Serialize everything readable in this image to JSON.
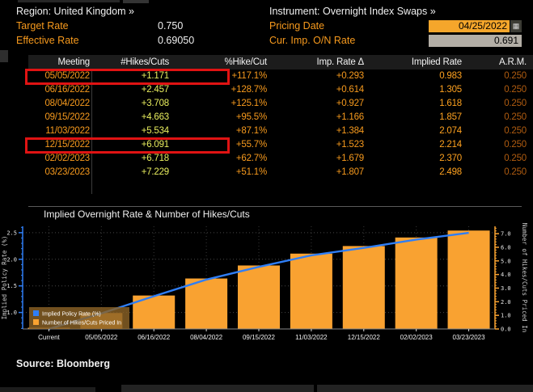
{
  "header": {
    "region": "Region: United Kingdom »",
    "instrument": "Instrument: Overnight Index Swaps »",
    "target_rate_label": "Target Rate",
    "target_rate_value": "0.750",
    "effective_rate_label": "Effective Rate",
    "effective_rate_value": "0.69050",
    "pricing_date_label": "Pricing Date",
    "pricing_date_value": "04/25/2022",
    "cur_imp_label": "Cur. Imp. O/N Rate",
    "cur_imp_value": "0.691"
  },
  "table": {
    "columns": [
      "Meeting",
      "#Hikes/Cuts",
      "%Hike/Cut",
      "Imp. Rate Δ",
      "Implied Rate",
      "A.R.M."
    ],
    "rows": [
      [
        "05/05/2022",
        "+1.171",
        "+117.1%",
        "+0.293",
        "0.983",
        "0.250"
      ],
      [
        "06/16/2022",
        "+2.457",
        "+128.7%",
        "+0.614",
        "1.305",
        "0.250"
      ],
      [
        "08/04/2022",
        "+3.708",
        "+125.1%",
        "+0.927",
        "1.618",
        "0.250"
      ],
      [
        "09/15/2022",
        "+4.663",
        "+95.5%",
        "+1.166",
        "1.857",
        "0.250"
      ],
      [
        "11/03/2022",
        "+5.534",
        "+87.1%",
        "+1.384",
        "2.074",
        "0.250"
      ],
      [
        "12/15/2022",
        "+6.091",
        "+55.7%",
        "+1.523",
        "2.214",
        "0.250"
      ],
      [
        "02/02/2023",
        "+6.718",
        "+62.7%",
        "+1.679",
        "2.370",
        "0.250"
      ],
      [
        "03/23/2023",
        "+7.229",
        "+51.1%",
        "+1.807",
        "2.498",
        "0.250"
      ]
    ],
    "highlighted_rows": [
      0,
      5
    ]
  },
  "chart_data": {
    "type": "bar",
    "title": "Implied Overnight Rate & Number of Hikes/Cuts",
    "categories": [
      "Current",
      "05/05/2022",
      "06/16/2022",
      "08/04/2022",
      "09/15/2022",
      "11/03/2022",
      "12/15/2022",
      "02/02/2023",
      "03/23/2023"
    ],
    "series": [
      {
        "name": "Implied Policy Rate (%)",
        "type": "line",
        "axis": "left",
        "values": [
          0.691,
          0.983,
          1.305,
          1.618,
          1.857,
          2.074,
          2.214,
          2.37,
          2.498
        ],
        "color": "#2f7ef6"
      },
      {
        "name": "Number of Hikes/Cuts Priced In",
        "type": "bar",
        "axis": "right",
        "values": [
          0,
          1.171,
          2.457,
          3.708,
          4.663,
          5.534,
          6.091,
          6.718,
          7.229
        ],
        "color": "#f9a231"
      }
    ],
    "left_axis": {
      "label": "Implied Policy Rate (%)",
      "ticks": [
        1.0,
        1.5,
        2.0,
        2.5
      ],
      "range": [
        0.69,
        2.62
      ],
      "color": "#2f7ef6"
    },
    "right_axis": {
      "label": "Number of Hikes/Cuts Priced In",
      "ticks": [
        0.0,
        1.0,
        2.0,
        3.0,
        4.0,
        5.0,
        6.0,
        7.0
      ],
      "range": [
        0,
        7.54
      ],
      "color": "#f9a231"
    },
    "grid": true,
    "legend_position": "bottom-left"
  },
  "source": "Source: Bloomberg",
  "colors": {
    "amber": "#f79a1d",
    "hikes_yellow": "#e9ee5e",
    "arm_orange": "#b05c10",
    "highlight_red": "#e01313",
    "bar_orange": "#f9a231",
    "line_blue": "#2f7ef6",
    "input_amber_bg": "#f5a62b",
    "input_gray_bg": "#b3aea6"
  }
}
